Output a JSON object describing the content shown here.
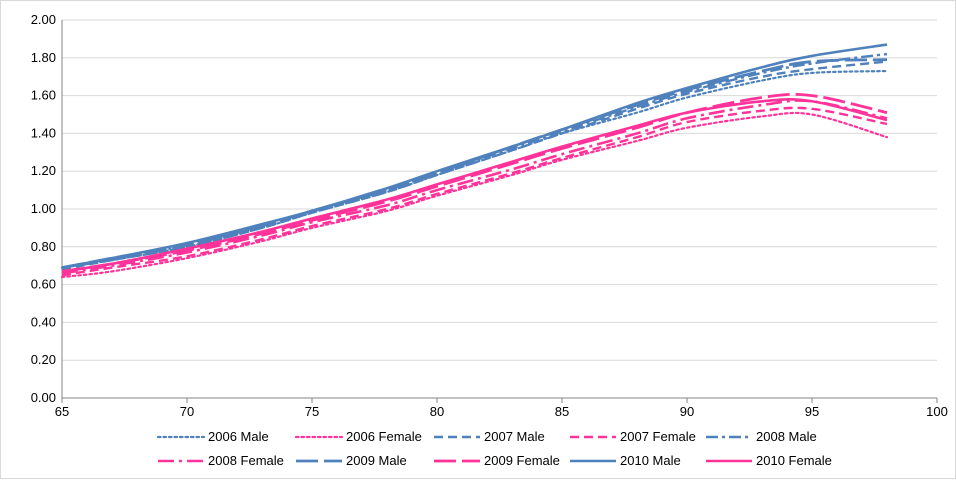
{
  "chart_data": {
    "type": "line",
    "title": "",
    "xlabel": "",
    "ylabel": "",
    "xlim": [
      65,
      100
    ],
    "ylim": [
      0,
      2.0
    ],
    "grid": "horizontal",
    "legend_position": "bottom",
    "x_ticks": [
      "65",
      "70",
      "75",
      "80",
      "85",
      "90",
      "95",
      "100"
    ],
    "y_ticks": [
      "0.00",
      "0.20",
      "0.40",
      "0.60",
      "0.80",
      "1.00",
      "1.20",
      "1.40",
      "1.60",
      "1.80",
      "2.00"
    ],
    "x": [
      65,
      67,
      70,
      73,
      75,
      78,
      80,
      83,
      85,
      88,
      90,
      93,
      95,
      98
    ],
    "series": [
      {
        "name": "2006 Male",
        "color": "#4F81BD",
        "dash": "dotted",
        "values": [
          0.69,
          0.73,
          0.8,
          0.9,
          0.98,
          1.09,
          1.18,
          1.31,
          1.4,
          1.51,
          1.59,
          1.68,
          1.72,
          1.73
        ]
      },
      {
        "name": "2006 Female",
        "color": "#FF3399",
        "dash": "dotted",
        "values": [
          0.64,
          0.67,
          0.74,
          0.83,
          0.9,
          0.99,
          1.07,
          1.18,
          1.26,
          1.36,
          1.43,
          1.49,
          1.5,
          1.38
        ]
      },
      {
        "name": "2007 Male",
        "color": "#4F81BD",
        "dash": "dashed",
        "values": [
          0.68,
          0.73,
          0.8,
          0.9,
          0.98,
          1.09,
          1.18,
          1.31,
          1.4,
          1.53,
          1.61,
          1.7,
          1.74,
          1.78
        ]
      },
      {
        "name": "2007 Female",
        "color": "#FF3399",
        "dash": "dashed",
        "values": [
          0.65,
          0.69,
          0.75,
          0.84,
          0.91,
          1.0,
          1.08,
          1.19,
          1.27,
          1.38,
          1.46,
          1.52,
          1.53,
          1.45
        ]
      },
      {
        "name": "2008 Male",
        "color": "#4F81BD",
        "dash": "dashdot",
        "values": [
          0.69,
          0.73,
          0.81,
          0.91,
          0.99,
          1.1,
          1.19,
          1.32,
          1.41,
          1.54,
          1.62,
          1.72,
          1.77,
          1.82
        ]
      },
      {
        "name": "2008 Female",
        "color": "#FF3399",
        "dash": "longdashdot",
        "values": [
          0.66,
          0.7,
          0.77,
          0.86,
          0.93,
          1.02,
          1.1,
          1.21,
          1.29,
          1.4,
          1.48,
          1.55,
          1.57,
          1.48
        ]
      },
      {
        "name": "2009 Male",
        "color": "#4F81BD",
        "dash": "longdash",
        "values": [
          0.69,
          0.74,
          0.81,
          0.91,
          0.99,
          1.1,
          1.19,
          1.33,
          1.42,
          1.55,
          1.63,
          1.73,
          1.78,
          1.79
        ]
      },
      {
        "name": "2009 Female",
        "color": "#FF3399",
        "dash": "longdash",
        "values": [
          0.67,
          0.71,
          0.78,
          0.87,
          0.94,
          1.04,
          1.12,
          1.24,
          1.32,
          1.43,
          1.51,
          1.59,
          1.6,
          1.51
        ]
      },
      {
        "name": "2010 Male",
        "color": "#4F81BD",
        "dash": "solid",
        "values": [
          0.69,
          0.74,
          0.82,
          0.92,
          0.99,
          1.11,
          1.2,
          1.33,
          1.42,
          1.56,
          1.64,
          1.75,
          1.81,
          1.87
        ]
      },
      {
        "name": "2010 Female",
        "color": "#FF3399",
        "dash": "solid",
        "values": [
          0.67,
          0.71,
          0.79,
          0.88,
          0.95,
          1.05,
          1.13,
          1.25,
          1.33,
          1.44,
          1.51,
          1.57,
          1.57,
          1.47
        ]
      }
    ]
  }
}
